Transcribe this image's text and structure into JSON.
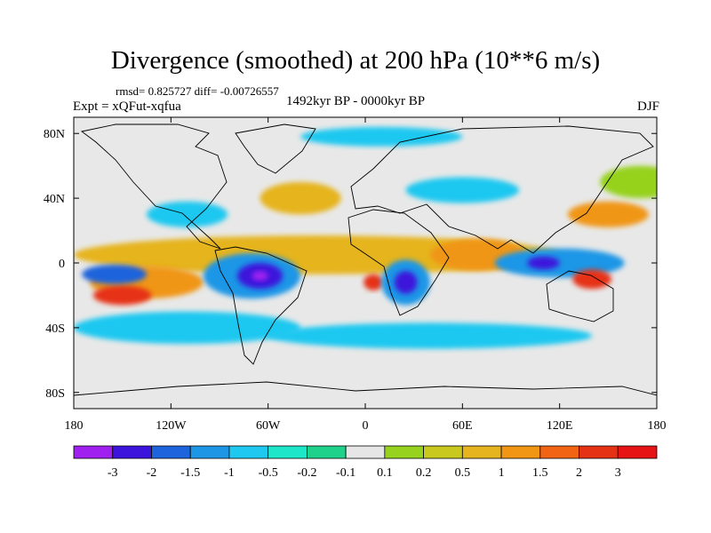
{
  "title": "Divergence (smoothed) at 200 hPa (10**6 m/s)",
  "stats_line": "rmsd= 0.825727 diff= -0.00726557",
  "experiment": "Expt = xQFut-xqfua",
  "period": "1492kyr BP - 0000kyr BP",
  "season": "DJF",
  "map": {
    "projection": "equirectangular",
    "lon_range": [
      -180,
      180
    ],
    "lat_range": [
      -90,
      90
    ],
    "background_color": "#e8e8e8",
    "coastlines": true
  },
  "axes": {
    "x_ticks": [
      {
        "value": -180,
        "label": "180"
      },
      {
        "value": -120,
        "label": "120W"
      },
      {
        "value": -60,
        "label": "60W"
      },
      {
        "value": 0,
        "label": "0"
      },
      {
        "value": 60,
        "label": "60E"
      },
      {
        "value": 120,
        "label": "120E"
      },
      {
        "value": 180,
        "label": "180"
      }
    ],
    "y_ticks": [
      {
        "value": 80,
        "label": "80N"
      },
      {
        "value": 40,
        "label": "40N"
      },
      {
        "value": 0,
        "label": "0"
      },
      {
        "value": -40,
        "label": "40S"
      },
      {
        "value": -80,
        "label": "80S"
      }
    ]
  },
  "colorbar": {
    "colors": [
      "#a020f0",
      "#3c14dc",
      "#1e64dc",
      "#1e96e6",
      "#1ec8f0",
      "#1ee6c8",
      "#1ed28c",
      "#e6e6e6",
      "#96d21e",
      "#c8c81e",
      "#e6b41e",
      "#f09614",
      "#f06414",
      "#e63214",
      "#e61414"
    ],
    "labels": [
      "-3",
      "-2",
      "-1.5",
      "-1",
      "-0.5",
      "-0.2",
      "-0.1",
      "0.1",
      "0.2",
      "0.5",
      "1",
      "1.5",
      "2",
      "3"
    ]
  },
  "fields": [
    {
      "name": "tropical-band-positive",
      "color": "#e6b41e",
      "lon": -30,
      "lat": 5,
      "rx": 150,
      "ry": 12
    },
    {
      "name": "pacific-orange",
      "color": "#f09614",
      "lon": -135,
      "lat": -12,
      "rx": 35,
      "ry": 10
    },
    {
      "name": "pacific-red",
      "color": "#e63214",
      "lon": -150,
      "lat": -20,
      "rx": 18,
      "ry": 6
    },
    {
      "name": "sam-divergence",
      "color": "#1e96e6",
      "lon": -70,
      "lat": -8,
      "rx": 30,
      "ry": 14
    },
    {
      "name": "sam-core",
      "color": "#3c14dc",
      "lon": -65,
      "lat": -8,
      "rx": 14,
      "ry": 8
    },
    {
      "name": "sam-purple",
      "color": "#a020f0",
      "lon": -65,
      "lat": -8,
      "rx": 5,
      "ry": 3
    },
    {
      "name": "east-pacific-core",
      "color": "#1e64dc",
      "lon": -155,
      "lat": -7,
      "rx": 20,
      "ry": 6
    },
    {
      "name": "atlantic-red",
      "color": "#e63214",
      "lon": 5,
      "lat": -12,
      "rx": 6,
      "ry": 5
    },
    {
      "name": "africa-blue",
      "color": "#1e96e6",
      "lon": 25,
      "lat": -12,
      "rx": 15,
      "ry": 14
    },
    {
      "name": "africa-core",
      "color": "#3c14dc",
      "lon": 25,
      "lat": -12,
      "rx": 7,
      "ry": 7
    },
    {
      "name": "indian-orange",
      "color": "#f09614",
      "lon": 70,
      "lat": 5,
      "rx": 30,
      "ry": 10
    },
    {
      "name": "maritime-blue",
      "color": "#1e96e6",
      "lon": 120,
      "lat": 0,
      "rx": 40,
      "ry": 9
    },
    {
      "name": "maritime-core",
      "color": "#3c14dc",
      "lon": 110,
      "lat": 0,
      "rx": 10,
      "ry": 4
    },
    {
      "name": "west-pacific-red",
      "color": "#e63214",
      "lon": 140,
      "lat": -10,
      "rx": 12,
      "ry": 6
    },
    {
      "name": "south-pacific-band",
      "color": "#1ec8f0",
      "lon": -110,
      "lat": -40,
      "rx": 70,
      "ry": 10
    },
    {
      "name": "southern-ocean-band",
      "color": "#1ec8f0",
      "lon": 40,
      "lat": -45,
      "rx": 100,
      "ry": 8
    },
    {
      "name": "north-pacific-orange",
      "color": "#f09614",
      "lon": 150,
      "lat": 30,
      "rx": 25,
      "ry": 8
    },
    {
      "name": "north-pacific-green",
      "color": "#96d21e",
      "lon": 170,
      "lat": 50,
      "rx": 25,
      "ry": 10
    },
    {
      "name": "north-atlantic-orange",
      "color": "#e6b41e",
      "lon": -40,
      "lat": 40,
      "rx": 25,
      "ry": 10
    },
    {
      "name": "arctic-cyan",
      "color": "#1ec8f0",
      "lon": 10,
      "lat": 78,
      "rx": 50,
      "ry": 6
    },
    {
      "name": "asia-cyan",
      "color": "#1ec8f0",
      "lon": 60,
      "lat": 45,
      "rx": 35,
      "ry": 8
    },
    {
      "name": "us-cyan",
      "color": "#1ec8f0",
      "lon": -110,
      "lat": 30,
      "rx": 25,
      "ry": 8
    }
  ]
}
